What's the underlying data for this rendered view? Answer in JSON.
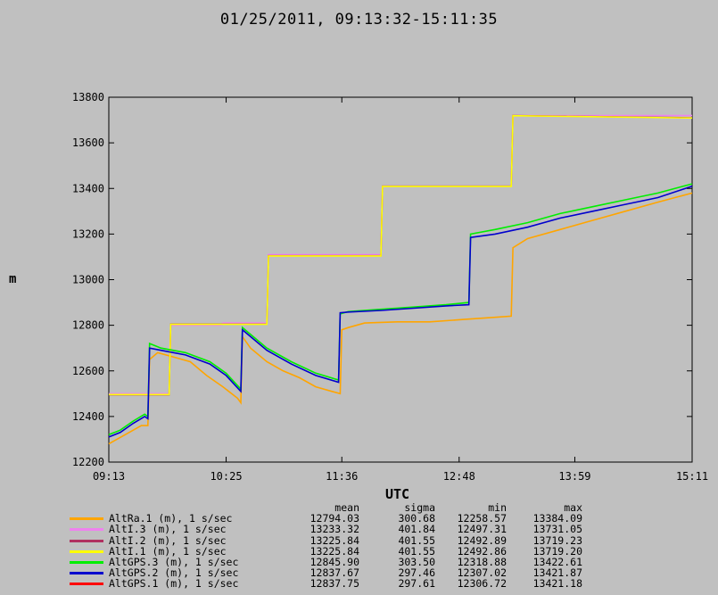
{
  "chart_data": {
    "type": "line",
    "title": "01/25/2011, 09:13:32-15:11:35",
    "xlabel": "UTC",
    "ylabel": "m",
    "ylim": [
      12200,
      13800
    ],
    "yticks": [
      12200,
      12400,
      12600,
      12800,
      13000,
      13200,
      13400,
      13600,
      13800
    ],
    "xlim_minutes_utc": [
      553,
      911
    ],
    "xticks": [
      {
        "label": "09:13",
        "min": 553
      },
      {
        "label": "10:25",
        "min": 625
      },
      {
        "label": "11:36",
        "min": 696
      },
      {
        "label": "12:48",
        "min": 768
      },
      {
        "label": "13:59",
        "min": 839
      },
      {
        "label": "15:11",
        "min": 911
      }
    ],
    "grid": false,
    "legend_position": "bottom",
    "stats_headers": [
      "mean",
      "sigma",
      "min",
      "max"
    ],
    "series": [
      {
        "name": "AltRa.1 (m), 1 s/sec",
        "color": "#ffa500",
        "mean": "12794.03",
        "sigma": "300.68",
        "min": "12258.57",
        "max": "13384.09",
        "points": [
          [
            553,
            12280
          ],
          [
            558,
            12300
          ],
          [
            563,
            12320
          ],
          [
            568,
            12340
          ],
          [
            573,
            12360
          ],
          [
            577,
            12360
          ],
          [
            578,
            12650
          ],
          [
            583,
            12680
          ],
          [
            593,
            12660
          ],
          [
            603,
            12640
          ],
          [
            613,
            12580
          ],
          [
            623,
            12530
          ],
          [
            632,
            12480
          ],
          [
            634,
            12460
          ],
          [
            635,
            12750
          ],
          [
            640,
            12700
          ],
          [
            650,
            12640
          ],
          [
            660,
            12600
          ],
          [
            670,
            12570
          ],
          [
            680,
            12530
          ],
          [
            690,
            12510
          ],
          [
            695,
            12500
          ],
          [
            696,
            12780
          ],
          [
            700,
            12790
          ],
          [
            710,
            12810
          ],
          [
            730,
            12815
          ],
          [
            750,
            12815
          ],
          [
            770,
            12825
          ],
          [
            790,
            12835
          ],
          [
            800,
            12840
          ],
          [
            801,
            13140
          ],
          [
            810,
            13180
          ],
          [
            830,
            13220
          ],
          [
            850,
            13260
          ],
          [
            870,
            13300
          ],
          [
            890,
            13340
          ],
          [
            911,
            13380
          ]
        ]
      },
      {
        "name": "AltI.3 (m), 1 s/sec",
        "color": "#ee82ee",
        "mean": "13233.32",
        "sigma": "401.84",
        "min": "12497.31",
        "max": "13731.05",
        "points": [
          [
            553,
            12500
          ],
          [
            590,
            12500
          ],
          [
            591,
            12800
          ],
          [
            622,
            12800
          ],
          [
            623,
            12810
          ],
          [
            650,
            12810
          ],
          [
            651,
            13110
          ],
          [
            720,
            13110
          ],
          [
            721,
            13410
          ],
          [
            800,
            13410
          ],
          [
            801,
            13720
          ],
          [
            911,
            13720
          ]
        ]
      },
      {
        "name": "AltI.2 (m), 1 s/sec",
        "color": "#b03060",
        "mean": "13225.84",
        "sigma": "401.55",
        "min": "12492.89",
        "max": "13719.23",
        "points": [
          [
            553,
            12495
          ],
          [
            590,
            12495
          ],
          [
            591,
            12805
          ],
          [
            650,
            12805
          ],
          [
            651,
            13105
          ],
          [
            720,
            13105
          ],
          [
            721,
            13410
          ],
          [
            800,
            13410
          ],
          [
            801,
            13720
          ],
          [
            911,
            13710
          ]
        ]
      },
      {
        "name": "AltI.1 (m), 1 s/sec",
        "color": "#ffff00",
        "mean": "13225.84",
        "sigma": "401.55",
        "min": "12492.86",
        "max": "13719.20",
        "points": [
          [
            553,
            12496
          ],
          [
            590,
            12496
          ],
          [
            591,
            12804
          ],
          [
            650,
            12804
          ],
          [
            651,
            13104
          ],
          [
            720,
            13104
          ],
          [
            721,
            13409
          ],
          [
            800,
            13409
          ],
          [
            801,
            13719
          ],
          [
            911,
            13709
          ]
        ]
      },
      {
        "name": "AltGPS.3 (m), 1 s/sec",
        "color": "#00ee00",
        "mean": "12845.90",
        "sigma": "303.50",
        "min": "12318.88",
        "max": "13422.61",
        "points": [
          [
            553,
            12320
          ],
          [
            560,
            12340
          ],
          [
            568,
            12380
          ],
          [
            575,
            12410
          ],
          [
            577,
            12400
          ],
          [
            578,
            12720
          ],
          [
            585,
            12700
          ],
          [
            600,
            12680
          ],
          [
            615,
            12640
          ],
          [
            625,
            12590
          ],
          [
            634,
            12520
          ],
          [
            635,
            12790
          ],
          [
            650,
            12700
          ],
          [
            665,
            12640
          ],
          [
            680,
            12590
          ],
          [
            694,
            12560
          ],
          [
            695,
            12850
          ],
          [
            700,
            12860
          ],
          [
            720,
            12870
          ],
          [
            740,
            12880
          ],
          [
            760,
            12890
          ],
          [
            774,
            12900
          ],
          [
            775,
            13200
          ],
          [
            790,
            13220
          ],
          [
            810,
            13250
          ],
          [
            830,
            13290
          ],
          [
            850,
            13320
          ],
          [
            870,
            13350
          ],
          [
            890,
            13380
          ],
          [
            911,
            13420
          ]
        ]
      },
      {
        "name": "AltGPS.2 (m), 1 s/sec",
        "color": "#0000cd",
        "mean": "12837.67",
        "sigma": "297.46",
        "min": "12307.02",
        "max": "13421.87",
        "points": [
          [
            553,
            12310
          ],
          [
            560,
            12330
          ],
          [
            568,
            12370
          ],
          [
            575,
            12400
          ],
          [
            577,
            12390
          ],
          [
            578,
            12700
          ],
          [
            585,
            12690
          ],
          [
            600,
            12670
          ],
          [
            615,
            12630
          ],
          [
            625,
            12580
          ],
          [
            634,
            12510
          ],
          [
            635,
            12780
          ],
          [
            650,
            12690
          ],
          [
            665,
            12630
          ],
          [
            680,
            12580
          ],
          [
            694,
            12550
          ],
          [
            695,
            12855
          ],
          [
            700,
            12858
          ],
          [
            720,
            12865
          ],
          [
            740,
            12875
          ],
          [
            760,
            12885
          ],
          [
            774,
            12890
          ],
          [
            775,
            13185
          ],
          [
            790,
            13200
          ],
          [
            810,
            13230
          ],
          [
            830,
            13270
          ],
          [
            850,
            13300
          ],
          [
            870,
            13330
          ],
          [
            890,
            13360
          ],
          [
            911,
            13410
          ]
        ]
      },
      {
        "name": "AltGPS.1 (m), 1 s/sec",
        "color": "#ff0000",
        "mean": "12837.75",
        "sigma": "297.61",
        "min": "12306.72",
        "max": "13421.18",
        "points": []
      }
    ]
  }
}
